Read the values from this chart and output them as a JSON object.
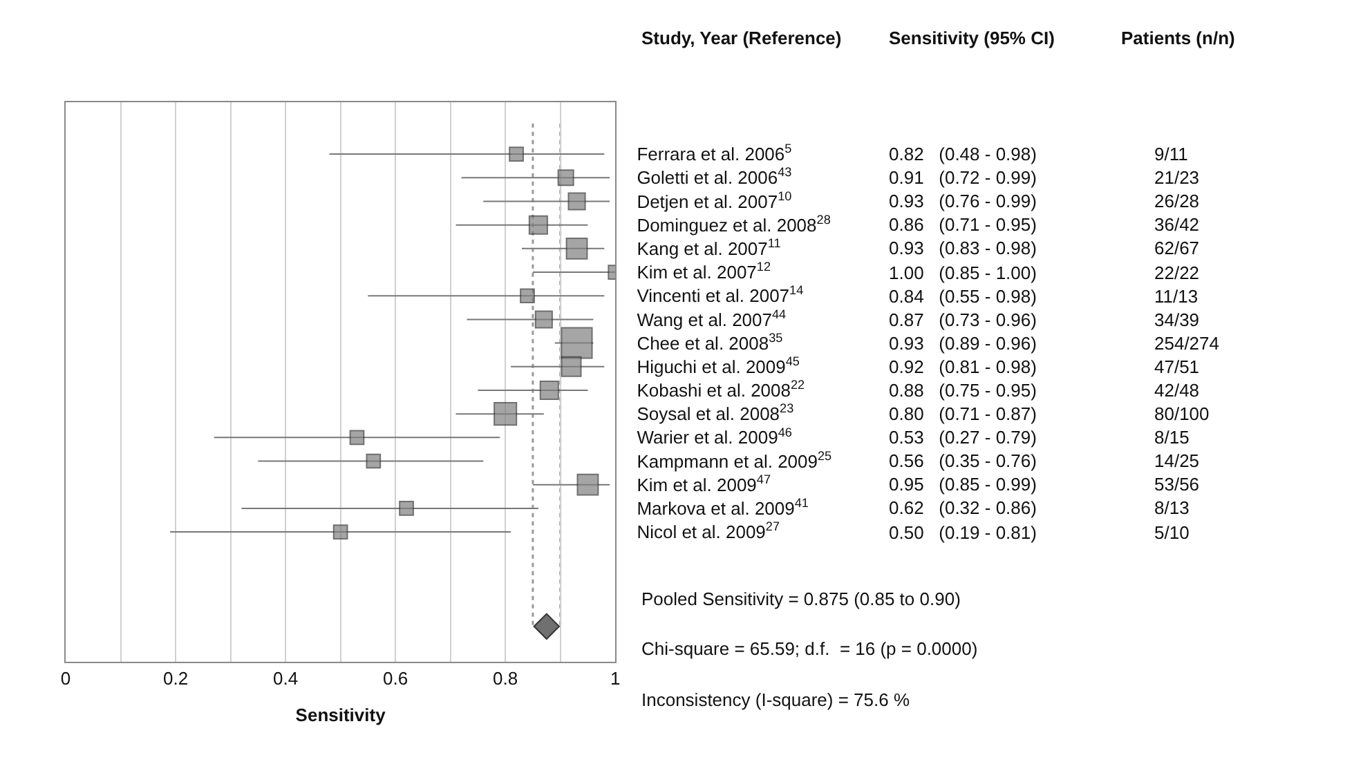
{
  "chart_data": {
    "type": "bubble",
    "orientation": "horizontal",
    "xlabel": "Sensitivity",
    "categories": [
      "Ferrara et al. 2006$^{5}$",
      "Goletti et al. 2006$^{43}$",
      "Detjen et al. 2007$^{10}$",
      "Dominguez et al. 2008$^{28}$",
      "Kang et al. 2007$^{11}$",
      "Kim et al. 2007$^{12}$",
      "Vincenti et al. 2007$^{14}$",
      "Wang et al. 2007$^{44}$",
      "Chee et al. 2008$^{35}$",
      "Higuchi et al. 2009$^{45}$",
      "Kobashi et al. 2008$^{22}$",
      "Soysal et al. 2008$^{23}$",
      "Warier et al. 2009$^{46}$",
      "Kampmann et al. 2009$^{25}$",
      "Kim et al. 2009$^{47}$",
      "Markova et al. 2009$^{41}$",
      "Nicol et al. 2009$^{27}$",
      null,
      null,
      null,
      null
    ],
    "series": [
      {
        "color": "#808080",
        "marker": "square",
        "values": [
          0.82,
          0.91,
          0.93,
          0.86,
          0.93,
          1.0,
          0.84,
          0.87,
          0.93,
          0.92,
          0.88,
          0.8,
          0.53,
          0.56,
          0.95,
          0.62,
          0.5,
          null,
          null,
          null,
          null
        ],
        "errors": [
          [
            0.48,
            0.98
          ],
          [
            0.72,
            0.99
          ],
          [
            0.76,
            0.99
          ],
          [
            0.71,
            0.95
          ],
          [
            0.83,
            0.98
          ],
          [
            0.85,
            1.0
          ],
          [
            0.55,
            0.98
          ],
          [
            0.73,
            0.96
          ],
          [
            0.89,
            0.96
          ],
          [
            0.81,
            0.98
          ],
          [
            0.75,
            0.95
          ],
          [
            0.71,
            0.87
          ],
          [
            0.27,
            0.79
          ],
          [
            0.35,
            0.76
          ],
          [
            0.85,
            0.99
          ],
          [
            0.32,
            0.86
          ],
          [
            0.19,
            0.81
          ],
          null,
          null,
          null,
          null
        ],
        "sizes": [
          0.2,
          0.25,
          0.3,
          0.35,
          0.46,
          0.2,
          0.2,
          0.3,
          1.0,
          0.4,
          0.35,
          0.53,
          0.2,
          0.2,
          0.46,
          0.2,
          0.2,
          null,
          null,
          null,
          null
        ],
        "value_labels": [
          "0.82   (0.48 - 0.98)",
          "0.91   (0.72 - 0.99)",
          "0.93   (0.76 - 0.99)",
          "0.86   (0.71 - 0.95)",
          "0.93   (0.83 - 0.98)",
          "1.00   (0.85 - 1.00)",
          "0.84   (0.55 - 0.98)",
          "0.87   (0.73 - 0.96)",
          "0.93   (0.89 - 0.96)",
          "0.92   (0.81 - 0.98)",
          "0.88   (0.75 - 0.95)",
          "0.80   (0.71 - 0.87)",
          "0.53   (0.27 - 0.79)",
          "0.56   (0.35 - 0.76)",
          "0.95   (0.85 - 0.99)",
          "0.62   (0.32 - 0.86)",
          "0.50   (0.19 - 0.81)",
          null,
          null,
          null,
          null
        ]
      },
      {
        "type": "scatter",
        "color": "#707070",
        "marker": "diamond",
        "values": [
          null,
          null,
          null,
          null,
          null,
          null,
          null,
          null,
          null,
          null,
          null,
          null,
          null,
          null,
          null,
          null,
          null,
          null,
          null,
          null,
          0.875
        ]
      }
    ],
    "xlim": [
      0,
      1
    ],
    "xticks": [
      0,
      {
        "value": 0.1,
        "label": null
      },
      0.2,
      {
        "value": 0.3,
        "label": null
      },
      0.4,
      {
        "value": 0.5,
        "label": null
      },
      0.6,
      {
        "value": 0.7,
        "label": null
      },
      0.8,
      {
        "value": 0.9,
        "label": null
      },
      1
    ],
    "grid": "x",
    "ref_lines": [
      {
        "axis": "x",
        "value": 0.85,
        "color": "#999999",
        "line_style": "dotted"
      },
      {
        "axis": "x",
        "value": 0.9,
        "color": "#999999",
        "line_style": "dotted"
      }
    ],
    "annotations": [
      "Study, Year (Reference)",
      "Sensitivity (95% CI)",
      "Patients (n/n)",
      "9/11",
      "21/23",
      "26/28",
      "36/42",
      "62/67",
      "22/22",
      "11/13",
      "34/39",
      "254/274",
      "47/51",
      "42/48",
      "80/100",
      "8/15",
      "14/25",
      "53/56",
      "8/13",
      "5/10",
      "Pooled Sensitivity = 0.875 (0.85 to 0.90)",
      "Chi-square = 65.59; d.f.  = 16 (p = 0.0000)",
      "Inconsistency (I-square) = 75.6 %"
    ]
  }
}
